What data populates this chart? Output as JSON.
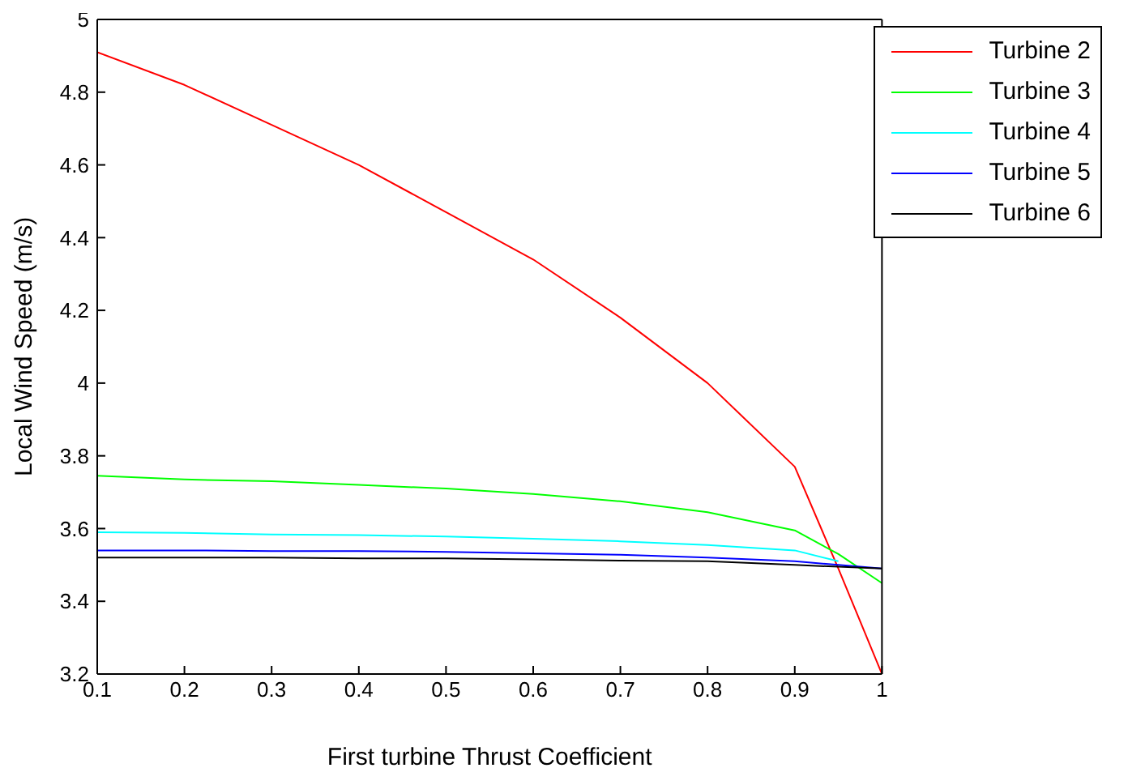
{
  "chart_data": {
    "type": "line",
    "xlabel": "First turbine Thrust Coefficient",
    "ylabel": "Local Wind Speed (m/s)",
    "x": [
      0.1,
      0.2,
      0.3,
      0.4,
      0.5,
      0.6,
      0.7,
      0.8,
      0.9,
      0.95,
      1.0
    ],
    "series": [
      {
        "name": "Turbine 2",
        "color": "#ff0000",
        "values": [
          4.91,
          4.82,
          4.71,
          4.6,
          4.47,
          4.34,
          4.18,
          4.0,
          3.77,
          3.49,
          3.2
        ]
      },
      {
        "name": "Turbine 3",
        "color": "#00ff00",
        "values": [
          3.745,
          3.735,
          3.73,
          3.72,
          3.71,
          3.695,
          3.675,
          3.645,
          3.595,
          3.53,
          3.45
        ]
      },
      {
        "name": "Turbine 4",
        "color": "#00ffff",
        "values": [
          3.59,
          3.588,
          3.584,
          3.582,
          3.578,
          3.572,
          3.565,
          3.555,
          3.54,
          3.51,
          null
        ]
      },
      {
        "name": "Turbine 5",
        "color": "#0000ff",
        "values": [
          3.54,
          3.54,
          3.538,
          3.538,
          3.536,
          3.532,
          3.528,
          3.52,
          3.51,
          3.5,
          3.49
        ]
      },
      {
        "name": "Turbine 6",
        "color": "#000000",
        "values": [
          3.52,
          3.52,
          3.52,
          3.518,
          3.518,
          3.515,
          3.512,
          3.51,
          3.5,
          3.495,
          3.49
        ]
      }
    ],
    "xlim": [
      0.1,
      1
    ],
    "xticks": [
      0.1,
      0.2,
      0.3,
      0.4,
      0.5,
      0.6,
      0.7,
      0.8,
      0.9,
      1
    ],
    "ylim": [
      3.2,
      5
    ],
    "yticks": [
      3.2,
      3.4,
      3.6,
      3.8,
      4,
      4.2,
      4.4,
      4.6,
      4.8,
      5
    ],
    "grid": false,
    "legend": "top right",
    "marker": "none",
    "line_style": "solid"
  }
}
